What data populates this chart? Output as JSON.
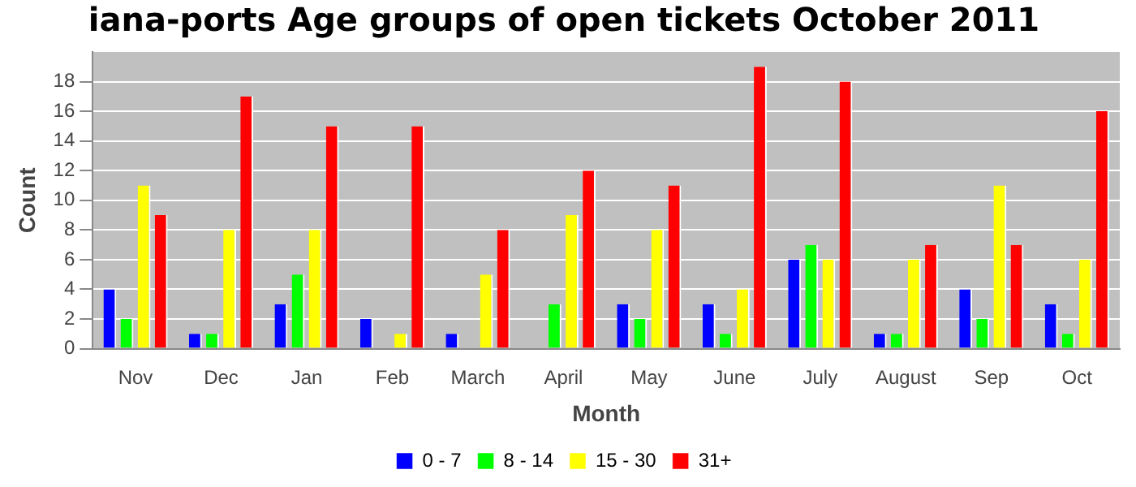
{
  "chart_data": {
    "type": "bar",
    "title": "iana-ports Age groups of open tickets October 2011",
    "xlabel": "Month",
    "ylabel": "Count",
    "categories": [
      "Nov",
      "Dec",
      "Jan",
      "Feb",
      "March",
      "April",
      "May",
      "June",
      "July",
      "August",
      "Sep",
      "Oct"
    ],
    "series": [
      {
        "name": "0 - 7",
        "color": "#0000ff",
        "values": [
          4,
          1,
          3,
          2,
          1,
          0,
          3,
          3,
          6,
          1,
          4,
          3
        ]
      },
      {
        "name": "8 - 14",
        "color": "#00ff00",
        "values": [
          2,
          1,
          5,
          0,
          0,
          3,
          2,
          1,
          7,
          1,
          2,
          1
        ]
      },
      {
        "name": "15 - 30",
        "color": "#ffff00",
        "values": [
          11,
          8,
          8,
          1,
          5,
          9,
          8,
          4,
          6,
          6,
          11,
          6
        ]
      },
      {
        "name": "31+",
        "color": "#ff0000",
        "values": [
          9,
          17,
          15,
          15,
          8,
          12,
          11,
          19,
          18,
          7,
          7,
          16
        ]
      }
    ],
    "ylim": [
      0,
      20
    ],
    "yticks": [
      0,
      2,
      4,
      6,
      8,
      10,
      12,
      14,
      16,
      18
    ],
    "grid": "y",
    "legend": "bottom"
  }
}
